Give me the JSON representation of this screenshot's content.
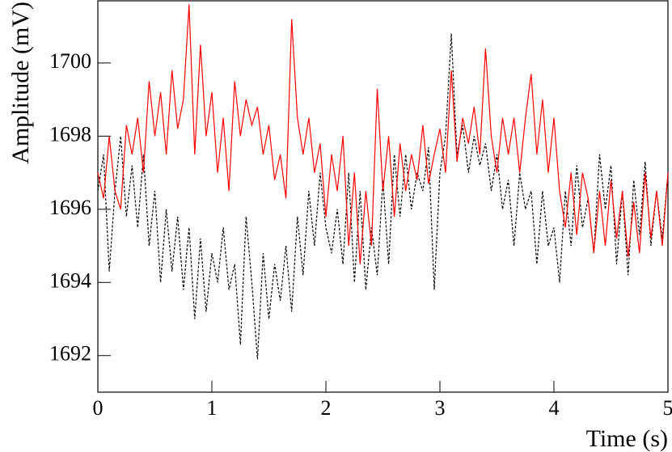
{
  "chart_data": {
    "type": "line",
    "x_label": "Time (s)",
    "y_label": "Amplitude (mV)",
    "x": [
      0,
      0.05,
      0.1,
      0.15,
      0.2,
      0.25,
      0.3,
      0.35,
      0.4,
      0.45,
      0.5,
      0.55,
      0.6,
      0.65,
      0.7,
      0.75,
      0.8,
      0.85,
      0.9,
      0.95,
      1,
      1.05,
      1.1,
      1.15,
      1.2,
      1.25,
      1.3,
      1.35,
      1.4,
      1.45,
      1.5,
      1.55,
      1.6,
      1.65,
      1.7,
      1.75,
      1.8,
      1.85,
      1.9,
      1.95,
      2,
      2.05,
      2.1,
      2.15,
      2.2,
      2.25,
      2.3,
      2.35,
      2.4,
      2.45,
      2.5,
      2.55,
      2.6,
      2.65,
      2.7,
      2.75,
      2.8,
      2.85,
      2.9,
      2.95,
      3,
      3.05,
      3.1,
      3.15,
      3.2,
      3.25,
      3.3,
      3.35,
      3.4,
      3.45,
      3.5,
      3.55,
      3.6,
      3.65,
      3.7,
      3.75,
      3.8,
      3.85,
      3.9,
      3.95,
      4,
      4.05,
      4.1,
      4.15,
      4.2,
      4.25,
      4.3,
      4.35,
      4.4,
      4.45,
      4.5,
      4.55,
      4.6,
      4.65,
      4.7,
      4.75,
      4.8,
      4.85,
      4.9,
      4.95,
      5
    ],
    "series": [
      {
        "color": "#ff0000",
        "dashed": false,
        "values": [
          1697,
          1696.3,
          1698,
          1696.5,
          1696,
          1698.3,
          1697.5,
          1698.5,
          1697,
          1699.5,
          1698,
          1699.2,
          1697.5,
          1699.8,
          1698.2,
          1699,
          1701.6,
          1697.5,
          1700.5,
          1698,
          1699.2,
          1697,
          1698.5,
          1696.5,
          1699.5,
          1698,
          1699,
          1698.3,
          1698.8,
          1697.5,
          1698.3,
          1696.8,
          1697.5,
          1696.3,
          1701.2,
          1698.5,
          1697.5,
          1698.5,
          1697,
          1697.8,
          1695.8,
          1697.5,
          1696.5,
          1698,
          1695,
          1697,
          1694.5,
          1696.5,
          1695,
          1699.3,
          1696.5,
          1698,
          1695.8,
          1697.8,
          1696.5,
          1697.5,
          1696.8,
          1698.3,
          1696.7,
          1697.5,
          1698.2,
          1697,
          1699.8,
          1697.3,
          1698.5,
          1697.8,
          1698.8,
          1697.5,
          1700.4,
          1698,
          1697,
          1698.5,
          1697.5,
          1698.5,
          1697,
          1698.5,
          1699.7,
          1697.5,
          1699,
          1697,
          1698.5,
          1696.5,
          1695.5,
          1697,
          1695.3,
          1697,
          1696.3,
          1694.8,
          1696.5,
          1695,
          1696.8,
          1695.2,
          1696.5,
          1694.7,
          1696.2,
          1694.8,
          1697,
          1695.2,
          1696.5,
          1695,
          1697
        ]
      },
      {
        "color": "#000000",
        "dashed": true,
        "values": [
          1696.5,
          1697.5,
          1694.3,
          1696.5,
          1698,
          1695.8,
          1697.2,
          1695.5,
          1697.5,
          1695,
          1696.5,
          1694,
          1696,
          1694.3,
          1695.8,
          1693.8,
          1695.5,
          1693,
          1695.2,
          1693.2,
          1694.8,
          1694,
          1695.5,
          1693.8,
          1694.5,
          1692.3,
          1695.8,
          1694,
          1691.9,
          1694.8,
          1693,
          1694.5,
          1693.5,
          1695,
          1693.2,
          1695.8,
          1694.2,
          1696.5,
          1695,
          1697,
          1695.5,
          1694.8,
          1696,
          1694.5,
          1697,
          1694,
          1696.5,
          1693.8,
          1695.5,
          1694.2,
          1696.8,
          1694.5,
          1697.5,
          1695.8,
          1697.5,
          1696,
          1697,
          1696.5,
          1697.7,
          1693.8,
          1697,
          1698,
          1700.8,
          1697.5,
          1698.3,
          1697,
          1698,
          1697.2,
          1697.8,
          1696.5,
          1697.5,
          1696,
          1696.8,
          1695,
          1697,
          1696,
          1696.5,
          1694.5,
          1696.5,
          1695,
          1695.5,
          1694,
          1696.5,
          1695,
          1697.2,
          1695.5,
          1696.3,
          1694.8,
          1697.5,
          1696,
          1697.2,
          1694.5,
          1696.5,
          1694.2,
          1696.8,
          1695.3,
          1697.3,
          1695,
          1696.5,
          1695.2,
          1697
        ]
      }
    ],
    "xlim": [
      0,
      5
    ],
    "xticks": [
      0,
      1,
      2,
      3,
      4,
      5
    ],
    "ylim": [
      1691,
      1701.7
    ],
    "yticks": [
      1692,
      1694,
      1696,
      1698,
      1700
    ]
  }
}
